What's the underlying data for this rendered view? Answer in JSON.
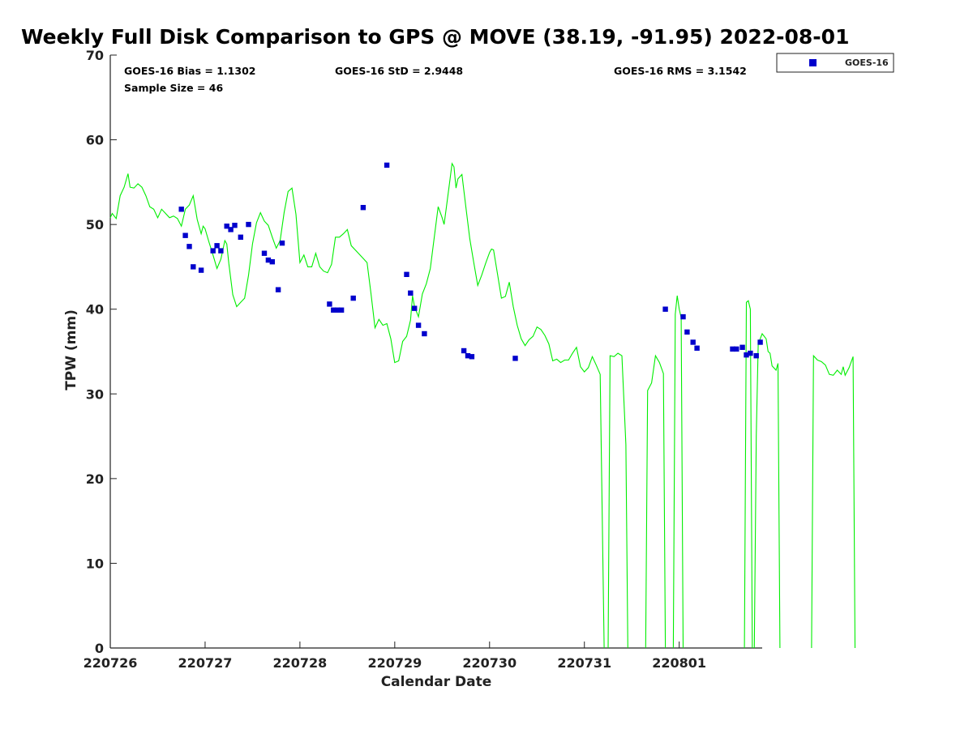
{
  "chart_data": {
    "type": "scatter",
    "title": "Weekly Full Disk Comparison to GPS @ MOVE (38.19, -91.95) 2022-08-01",
    "xlabel": "Calendar Date",
    "ylabel": "TPW (mm)",
    "xlim": [
      "220726",
      "220801 21:00"
    ],
    "ylim": [
      0,
      70
    ],
    "x_ticks": [
      "220726",
      "220727",
      "220728",
      "220729",
      "220730",
      "220731",
      "220801"
    ],
    "y_ticks": [
      "0",
      "10",
      "20",
      "30",
      "40",
      "50",
      "60",
      "70"
    ],
    "grid": false,
    "legend_position": "top-right",
    "stats": {
      "bias": "GOES-16 Bias = 1.1302",
      "std": "GOES-16 StD = 2.9448",
      "rms": "GOES-16 RMS = 3.1542",
      "sample_size": "Sample Size = 46"
    },
    "series": [
      {
        "name": "GOES-16",
        "kind": "scatter",
        "marker": "square",
        "color": "#0000cc",
        "points": [
          [
            "220726 18:00",
            51.8
          ],
          [
            "220726 19:00",
            48.7
          ],
          [
            "220726 20:00",
            47.4
          ],
          [
            "220726 21:00",
            45.0
          ],
          [
            "220726 23:00",
            44.6
          ],
          [
            "220727 02:00",
            46.9
          ],
          [
            "220727 03:00",
            47.5
          ],
          [
            "220727 04:00",
            46.9
          ],
          [
            "220727 05:30",
            49.8
          ],
          [
            "220727 06:30",
            49.4
          ],
          [
            "220727 07:30",
            49.9
          ],
          [
            "220727 09:00",
            48.5
          ],
          [
            "220727 11:00",
            50.0
          ],
          [
            "220727 15:00",
            46.6
          ],
          [
            "220727 16:00",
            45.8
          ],
          [
            "220727 17:00",
            45.6
          ],
          [
            "220727 18:30",
            42.3
          ],
          [
            "220727 19:30",
            47.8
          ],
          [
            "220728 07:30",
            40.6
          ],
          [
            "220728 08:30",
            39.9
          ],
          [
            "220728 09:30",
            39.9
          ],
          [
            "220728 10:30",
            39.9
          ],
          [
            "220728 13:30",
            41.3
          ],
          [
            "220728 16:00",
            52.0
          ],
          [
            "220728 22:00",
            57.0
          ],
          [
            "220729 03:00",
            44.1
          ],
          [
            "220729 04:00",
            41.9
          ],
          [
            "220729 05:00",
            40.1
          ],
          [
            "220729 06:00",
            38.1
          ],
          [
            "220729 07:30",
            37.1
          ],
          [
            "220729 17:30",
            35.1
          ],
          [
            "220729 18:30",
            34.5
          ],
          [
            "220729 19:30",
            34.4
          ],
          [
            "220730 06:30",
            34.2
          ],
          [
            "220731 20:30",
            40.0
          ],
          [
            "220801 01:00",
            39.1
          ],
          [
            "220801 02:00",
            37.3
          ],
          [
            "220801 03:30",
            36.1
          ],
          [
            "220801 04:30",
            35.4
          ],
          [
            "220801 13:30",
            35.3
          ],
          [
            "220801 14:30",
            35.3
          ],
          [
            "220801 16:00",
            35.5
          ],
          [
            "220801 17:00",
            34.6
          ],
          [
            "220801 18:00",
            34.8
          ],
          [
            "220801 19:30",
            34.5
          ],
          [
            "220801 20:30",
            36.1
          ]
        ]
      },
      {
        "kind": "line",
        "color": "#00ee00",
        "segments": [
          [
            [
              "220726 00:00",
              50.8
            ],
            [
              "220726 00:30",
              51.3
            ],
            [
              "220726 01:30",
              50.7
            ],
            [
              "220726 02:30",
              53.4
            ],
            [
              "220726 03:30",
              54.4
            ],
            [
              "220726 04:30",
              56.0
            ],
            [
              "220726 05:00",
              54.4
            ],
            [
              "220726 06:00",
              54.3
            ],
            [
              "220726 07:00",
              54.8
            ],
            [
              "220726 08:00",
              54.4
            ],
            [
              "220726 09:00",
              53.4
            ],
            [
              "220726 10:00",
              52.1
            ],
            [
              "220726 11:00",
              51.8
            ],
            [
              "220726 12:00",
              50.8
            ],
            [
              "220726 13:00",
              51.8
            ],
            [
              "220726 14:00",
              51.3
            ],
            [
              "220726 15:00",
              50.8
            ],
            [
              "220726 16:00",
              51.0
            ],
            [
              "220726 17:00",
              50.7
            ],
            [
              "220726 18:00",
              49.8
            ],
            [
              "220726 19:00",
              51.8
            ],
            [
              "220726 20:00",
              52.3
            ],
            [
              "220726 21:00",
              53.4
            ],
            [
              "220726 22:00",
              50.6
            ],
            [
              "220726 23:00",
              48.9
            ],
            [
              "220726 23:30",
              49.8
            ],
            [
              "220727 00:00",
              49.5
            ],
            [
              "220727 01:00",
              47.9
            ],
            [
              "220727 02:00",
              46.4
            ],
            [
              "220727 03:00",
              44.8
            ],
            [
              "220727 04:00",
              45.9
            ],
            [
              "220727 05:00",
              48.1
            ],
            [
              "220727 05:30",
              47.7
            ],
            [
              "220727 06:00",
              45.4
            ],
            [
              "220727 07:00",
              41.7
            ],
            [
              "220727 08:00",
              40.3
            ],
            [
              "220727 09:00",
              40.8
            ],
            [
              "220727 10:00",
              41.3
            ],
            [
              "220727 11:00",
              44.0
            ],
            [
              "220727 12:00",
              47.7
            ],
            [
              "220727 13:00",
              50.2
            ],
            [
              "220727 14:00",
              51.4
            ],
            [
              "220727 15:00",
              50.4
            ],
            [
              "220727 16:00",
              49.9
            ],
            [
              "220727 17:00",
              48.5
            ],
            [
              "220727 18:00",
              47.2
            ],
            [
              "220727 19:00",
              48.1
            ],
            [
              "220727 20:00",
              51.4
            ],
            [
              "220727 21:00",
              53.9
            ],
            [
              "220727 22:00",
              54.3
            ],
            [
              "220727 23:00",
              51.2
            ],
            [
              "220728 00:00",
              45.5
            ],
            [
              "220728 01:00",
              46.4
            ],
            [
              "220728 02:00",
              45.0
            ],
            [
              "220728 03:00",
              45.0
            ],
            [
              "220728 04:00",
              46.6
            ],
            [
              "220728 05:00",
              45.0
            ],
            [
              "220728 06:00",
              44.5
            ],
            [
              "220728 07:00",
              44.3
            ],
            [
              "220728 08:00",
              45.3
            ],
            [
              "220728 09:00",
              48.5
            ],
            [
              "220728 10:00",
              48.5
            ],
            [
              "220728 11:00",
              48.9
            ],
            [
              "220728 12:00",
              49.4
            ],
            [
              "220728 13:00",
              47.5
            ],
            [
              "220728 14:00",
              47.0
            ],
            [
              "220728 15:00",
              46.5
            ],
            [
              "220728 16:00",
              46.0
            ],
            [
              "220728 17:00",
              45.5
            ],
            [
              "220728 18:00",
              41.8
            ],
            [
              "220728 19:00",
              37.8
            ],
            [
              "220728 20:00",
              38.8
            ],
            [
              "220728 21:00",
              38.1
            ],
            [
              "220728 22:00",
              38.3
            ],
            [
              "220728 23:00",
              36.5
            ],
            [
              "220729 00:00",
              33.7
            ],
            [
              "220729 01:00",
              33.9
            ],
            [
              "220729 02:00",
              36.2
            ],
            [
              "220729 03:00",
              36.8
            ],
            [
              "220729 04:00",
              38.7
            ],
            [
              "220729 04:30",
              41.6
            ],
            [
              "220729 05:00",
              40.3
            ],
            [
              "220729 06:00",
              39.1
            ],
            [
              "220729 07:00",
              41.8
            ],
            [
              "220729 08:00",
              43.0
            ],
            [
              "220729 09:00",
              44.8
            ],
            [
              "220729 10:00",
              48.5
            ],
            [
              "220729 11:00",
              52.1
            ],
            [
              "220729 12:00",
              50.8
            ],
            [
              "220729 12:30",
              50.0
            ],
            [
              "220729 13:00",
              51.8
            ],
            [
              "220729 14:00",
              55.4
            ],
            [
              "220729 14:30",
              57.2
            ],
            [
              "220729 15:00",
              56.8
            ],
            [
              "220729 15:30",
              54.3
            ],
            [
              "220729 16:00",
              55.4
            ],
            [
              "220729 17:00",
              55.9
            ],
            [
              "220729 18:00",
              52.1
            ],
            [
              "220729 19:00",
              48.3
            ],
            [
              "220729 20:00",
              45.5
            ],
            [
              "220729 21:00",
              42.8
            ],
            [
              "220729 22:00",
              44.0
            ],
            [
              "220729 23:00",
              45.4
            ],
            [
              "220730 00:00",
              46.7
            ],
            [
              "220730 00:30",
              47.1
            ],
            [
              "220730 01:00",
              47.0
            ],
            [
              "220730 02:00",
              44.2
            ],
            [
              "220730 03:00",
              41.3
            ],
            [
              "220730 04:00",
              41.5
            ],
            [
              "220730 05:00",
              43.2
            ],
            [
              "220730 06:00",
              40.3
            ],
            [
              "220730 07:00",
              38.1
            ],
            [
              "220730 08:00",
              36.5
            ],
            [
              "220730 09:00",
              35.7
            ],
            [
              "220730 10:00",
              36.4
            ],
            [
              "220730 11:00",
              36.8
            ],
            [
              "220730 12:00",
              37.9
            ],
            [
              "220730 13:00",
              37.6
            ],
            [
              "220730 14:00",
              36.9
            ],
            [
              "220730 15:00",
              35.9
            ],
            [
              "220730 16:00",
              33.9
            ],
            [
              "220730 17:00",
              34.1
            ],
            [
              "220730 18:00",
              33.7
            ],
            [
              "220730 19:00",
              34.0
            ],
            [
              "220730 20:00",
              34.0
            ],
            [
              "220730 21:00",
              34.8
            ],
            [
              "220730 22:00",
              35.5
            ],
            [
              "220730 23:00",
              33.2
            ],
            [
              "220731 00:00",
              32.6
            ],
            [
              "220731 01:00",
              33.1
            ],
            [
              "220731 02:00",
              34.4
            ],
            [
              "220731 03:00",
              33.4
            ],
            [
              "220731 04:00",
              32.3
            ],
            [
              "220731 05:00",
              0.0
            ]
          ],
          [
            [
              "220731 06:00",
              0.0
            ],
            [
              "220731 06:30",
              34.5
            ],
            [
              "220731 07:30",
              34.4
            ],
            [
              "220731 08:30",
              34.8
            ],
            [
              "220731 09:30",
              34.5
            ],
            [
              "220731 10:30",
              24.0
            ],
            [
              "220731 11:00",
              0.0
            ]
          ],
          [
            [
              "220731 15:30",
              0.0
            ],
            [
              "220731 16:00",
              30.4
            ],
            [
              "220731 17:00",
              31.3
            ],
            [
              "220731 18:00",
              34.5
            ],
            [
              "220731 19:00",
              33.7
            ],
            [
              "220731 20:00",
              32.4
            ],
            [
              "220731 20:30",
              0.0
            ]
          ],
          [
            [
              "220731 22:30",
              0.0
            ],
            [
              "220731 23:00",
              39.4
            ],
            [
              "220731 23:30",
              41.6
            ],
            [
              "220801 00:00",
              40.0
            ],
            [
              "220801 00:30",
              39.0
            ],
            [
              "220801 01:00",
              0.0
            ]
          ],
          [
            [
              "220801 16:30",
              0.0
            ],
            [
              "220801 17:00",
              40.8
            ],
            [
              "220801 17:30",
              41.0
            ],
            [
              "220801 18:00",
              40.0
            ],
            [
              "220801 18:30",
              0.0
            ]
          ],
          [
            [
              "220801 19:00",
              0.0
            ],
            [
              "220801 19:30",
              25.0
            ],
            [
              "220801 20:00",
              35.9
            ],
            [
              "220801 21:00",
              37.1
            ],
            [
              "220801 22:00",
              36.5
            ],
            [
              "220801 22:30",
              35.0
            ],
            [
              "220801 23:00",
              34.8
            ],
            [
              "220801 23:30",
              33.3
            ],
            [
              "220802 00:30",
              32.8
            ],
            [
              "220802 01:00",
              33.6
            ],
            [
              "220802 01:30",
              0.0
            ]
          ],
          [
            [
              "220802 09:30",
              0.0
            ],
            [
              "220802 10:00",
              34.5
            ],
            [
              "220802 11:00",
              34.0
            ],
            [
              "220802 12:00",
              33.8
            ],
            [
              "220802 13:00",
              33.4
            ],
            [
              "220802 14:00",
              32.3
            ],
            [
              "220802 15:00",
              32.2
            ],
            [
              "220802 16:00",
              32.8
            ],
            [
              "220802 17:00",
              32.3
            ],
            [
              "220802 17:30",
              33.2
            ],
            [
              "220802 18:00",
              32.2
            ],
            [
              "220802 19:00",
              33.1
            ],
            [
              "220802 20:00",
              34.4
            ],
            [
              "220802 20:30",
              0.0
            ]
          ]
        ]
      }
    ]
  }
}
